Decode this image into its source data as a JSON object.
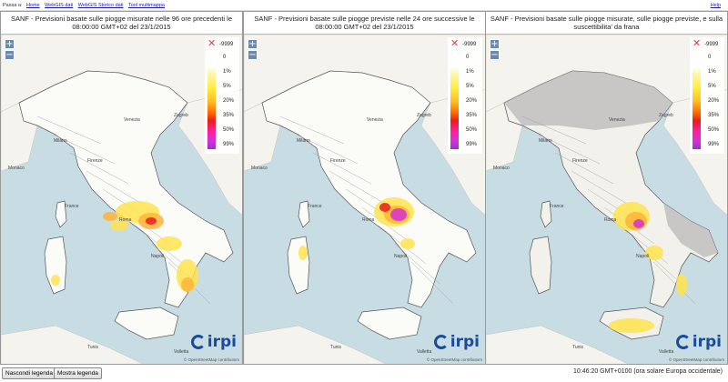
{
  "topbar": {
    "label": "Passa a:",
    "links": [
      "Home",
      "WebGIS dati",
      "WebGIS Storico dati",
      "Tool multimappa"
    ],
    "help": "Help"
  },
  "panels": [
    {
      "title": "SANF - Previsioni basate sulle piogge misurate nelle 96 ore precedenti le 08:00:00 GMT+02 del 23/1/2015",
      "places": [
        "Milano",
        "Venezia",
        "Zagreb",
        "Monaco",
        "Firenze",
        "France",
        "Roma",
        "Napoli",
        "Tunis",
        "Valletta"
      ]
    },
    {
      "title": "SANF - Previsioni basate sulle piogge previste nelle 24 ore successive le 08:00:00 GMT+02 del 23/1/2015",
      "places": [
        "Milano",
        "Venezia",
        "Zagreb",
        "Monaco",
        "Firenze",
        "France",
        "Roma",
        "Napoli",
        "Tunis",
        "Valletta"
      ]
    },
    {
      "title": "SANF - Previsioni basate sulle piogge misurate, sulle piogge previste, e sulla suscettibilita' da frana",
      "places": [
        "Milano",
        "Venezia",
        "Zagreb",
        "Monaco",
        "Firenze",
        "France",
        "Roma",
        "Napoli",
        "Tunis",
        "Valletta"
      ]
    }
  ],
  "legend": {
    "nodata": "-9999",
    "ticks": [
      "0",
      "1%",
      "5%",
      "20%",
      "35%",
      "50%",
      "99%"
    ]
  },
  "logo_text": "irpi",
  "attribution": "© OpenStreetMap contributors",
  "buttons": {
    "hide_legend": "Nascondi legenda",
    "show_legend": "Mostra legenda"
  },
  "clock": "10:46:20 GMT+0100 (ora solare Europa occidentale)",
  "colors": {
    "sea": "#c8dde3",
    "land": "#f4f3ee",
    "yellow": "#ffe34d",
    "orange": "#ffb43a",
    "red": "#e61d1d",
    "magenta": "#d62fd0",
    "grey": "#bdbdbd"
  }
}
